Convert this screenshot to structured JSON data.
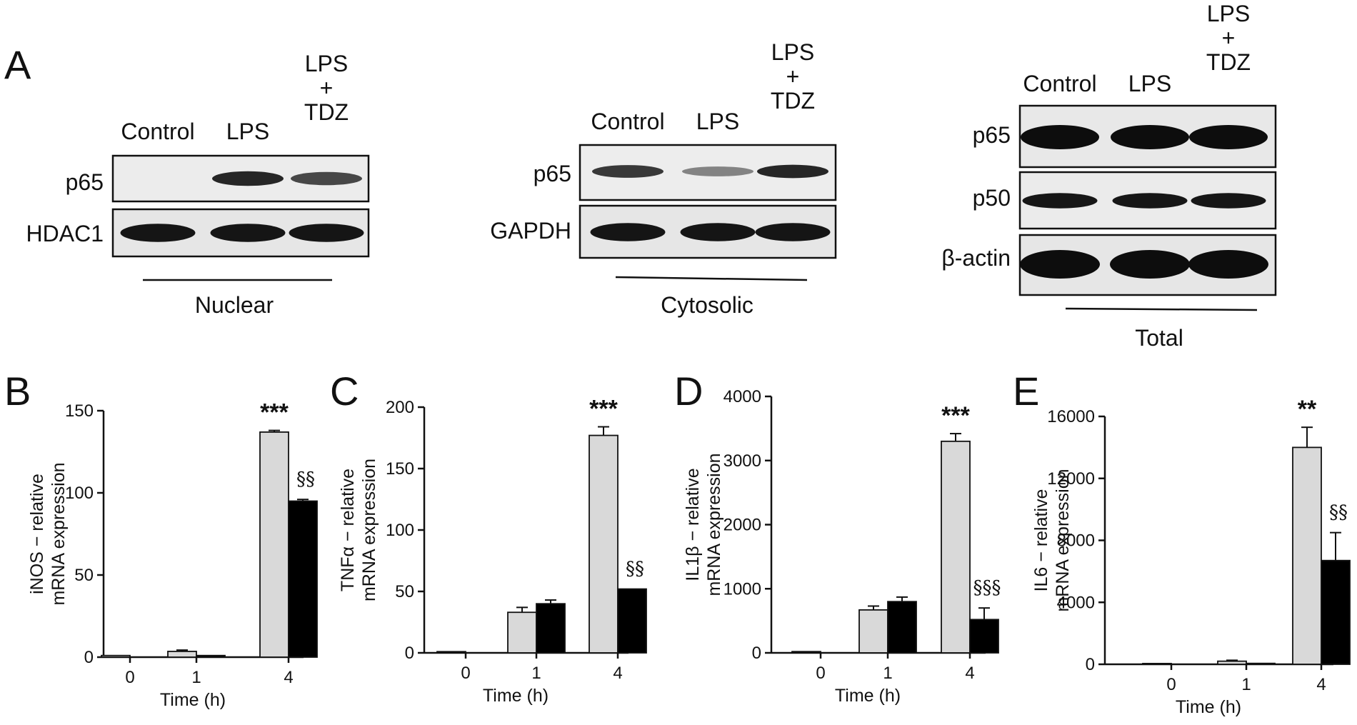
{
  "panels": {
    "A": "A",
    "B": "B",
    "C": "C",
    "D": "D",
    "E": "E"
  },
  "blots": [
    {
      "lanes": [
        "Control",
        "LPS",
        "LPS\n+\nTDZ"
      ],
      "rows": [
        {
          "label": "p65",
          "intensity": [
            0.0,
            0.85,
            0.65
          ]
        },
        {
          "label": "HDAC1",
          "intensity": [
            0.95,
            0.95,
            0.95
          ]
        }
      ],
      "fraction": "Nuclear"
    },
    {
      "lanes": [
        "Control",
        "LPS",
        "LPS\n+\nTDZ"
      ],
      "rows": [
        {
          "label": "p65",
          "intensity": [
            0.75,
            0.3,
            0.85
          ]
        },
        {
          "label": "GAPDH",
          "intensity": [
            0.95,
            0.95,
            0.95
          ]
        }
      ],
      "fraction": "Cytosolic"
    },
    {
      "lanes": [
        "Control",
        "LPS",
        "LPS\n+\nTDZ"
      ],
      "rows": [
        {
          "label": "p65",
          "intensity": [
            1.0,
            1.0,
            1.0
          ]
        },
        {
          "label": "p50",
          "intensity": [
            0.95,
            0.95,
            0.95
          ]
        },
        {
          "label": "β-actin",
          "intensity": [
            1.0,
            1.0,
            1.0
          ]
        }
      ],
      "fraction": "Total"
    }
  ],
  "chart_data": [
    {
      "type": "bar",
      "panel": "B",
      "categories": [
        "0",
        "1",
        "4"
      ],
      "xlabel": "Time (h)",
      "ylabel": "iNOS − relative\nmRNA expression",
      "ylim": [
        0,
        150
      ],
      "yticks": [
        0,
        50,
        100,
        150
      ],
      "series": [
        {
          "values": [
            1,
            3.5,
            137
          ],
          "errors": [
            0,
            0.8,
            1
          ],
          "color": "#d9d9d9"
        },
        {
          "values": [
            0,
            1,
            95
          ],
          "errors": [
            0,
            0,
            1
          ],
          "color": "#000000"
        }
      ],
      "significance": [
        {
          "label": "***",
          "series": 0,
          "category": 2
        },
        {
          "label": "§§",
          "series": 1,
          "category": 2
        }
      ]
    },
    {
      "type": "bar",
      "panel": "C",
      "categories": [
        "0",
        "1",
        "4"
      ],
      "xlabel": "Time (h)",
      "ylabel": "TNFα − relative\nmRNA expression",
      "ylim": [
        0,
        200
      ],
      "yticks": [
        0,
        50,
        100,
        150,
        200
      ],
      "series": [
        {
          "values": [
            1,
            33,
            177
          ],
          "errors": [
            0,
            4,
            7
          ],
          "color": "#d9d9d9"
        },
        {
          "values": [
            0,
            40,
            52
          ],
          "errors": [
            0,
            3,
            0
          ],
          "color": "#000000"
        }
      ],
      "significance": [
        {
          "label": "***",
          "series": 0,
          "category": 2
        },
        {
          "label": "§§",
          "series": 1,
          "category": 2
        }
      ]
    },
    {
      "type": "bar",
      "panel": "D",
      "categories": [
        "0",
        "1",
        "4"
      ],
      "xlabel": "Time (h)",
      "ylabel": "IL1β − relative\nmRNA expression",
      "ylim": [
        0,
        4000
      ],
      "yticks": [
        0,
        1000,
        2000,
        3000,
        4000
      ],
      "series": [
        {
          "values": [
            20,
            670,
            3300
          ],
          "errors": [
            0,
            60,
            120
          ],
          "color": "#d9d9d9"
        },
        {
          "values": [
            0,
            800,
            520
          ],
          "errors": [
            0,
            70,
            180
          ],
          "color": "#000000"
        }
      ],
      "significance": [
        {
          "label": "***",
          "series": 0,
          "category": 2
        },
        {
          "label": "§§§",
          "series": 1,
          "category": 2
        }
      ]
    },
    {
      "type": "bar",
      "panel": "E",
      "categories": [
        "0",
        "1",
        "4"
      ],
      "xlabel": "Time (h)",
      "ylabel": "IL6 − relative\nmRNA expression",
      "ylim": [
        0,
        16000
      ],
      "yticks": [
        0,
        4000,
        8000,
        12000,
        16000
      ],
      "series": [
        {
          "values": [
            50,
            200,
            14000
          ],
          "errors": [
            0,
            60,
            1300
          ],
          "color": "#d9d9d9"
        },
        {
          "values": [
            0,
            60,
            6700
          ],
          "errors": [
            0,
            0,
            1800
          ],
          "color": "#000000"
        }
      ],
      "significance": [
        {
          "label": "**",
          "series": 0,
          "category": 2
        },
        {
          "label": "§§",
          "series": 1,
          "category": 2
        }
      ]
    }
  ]
}
